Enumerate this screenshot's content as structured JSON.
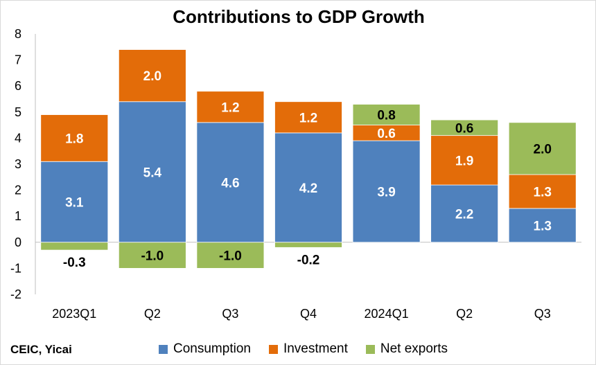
{
  "source": "CEIC, Yicai",
  "chart_data": {
    "type": "bar",
    "stacked": true,
    "title": "Contributions to GDP Growth",
    "categories": [
      "2023Q1",
      "Q2",
      "Q3",
      "Q4",
      "2024Q1",
      "Q2",
      "Q3"
    ],
    "series": [
      {
        "name": "Consumption",
        "color": "#4f81bd",
        "values": [
          3.1,
          5.4,
          4.6,
          4.2,
          3.9,
          2.2,
          1.3
        ]
      },
      {
        "name": "Investment",
        "color": "#e36c09",
        "values": [
          1.8,
          2.0,
          1.2,
          1.2,
          0.6,
          1.9,
          1.3
        ]
      },
      {
        "name": "Net exports",
        "color": "#9bbb59",
        "values": [
          -0.3,
          -1.0,
          -1.0,
          -0.2,
          0.8,
          0.6,
          2.0
        ]
      }
    ],
    "ylim": [
      -2,
      8
    ],
    "yticks": [
      "-2",
      "-1",
      "0",
      "1",
      "2",
      "3",
      "4",
      "5",
      "6",
      "7",
      "8"
    ],
    "legend": "bottom",
    "grid": false
  }
}
